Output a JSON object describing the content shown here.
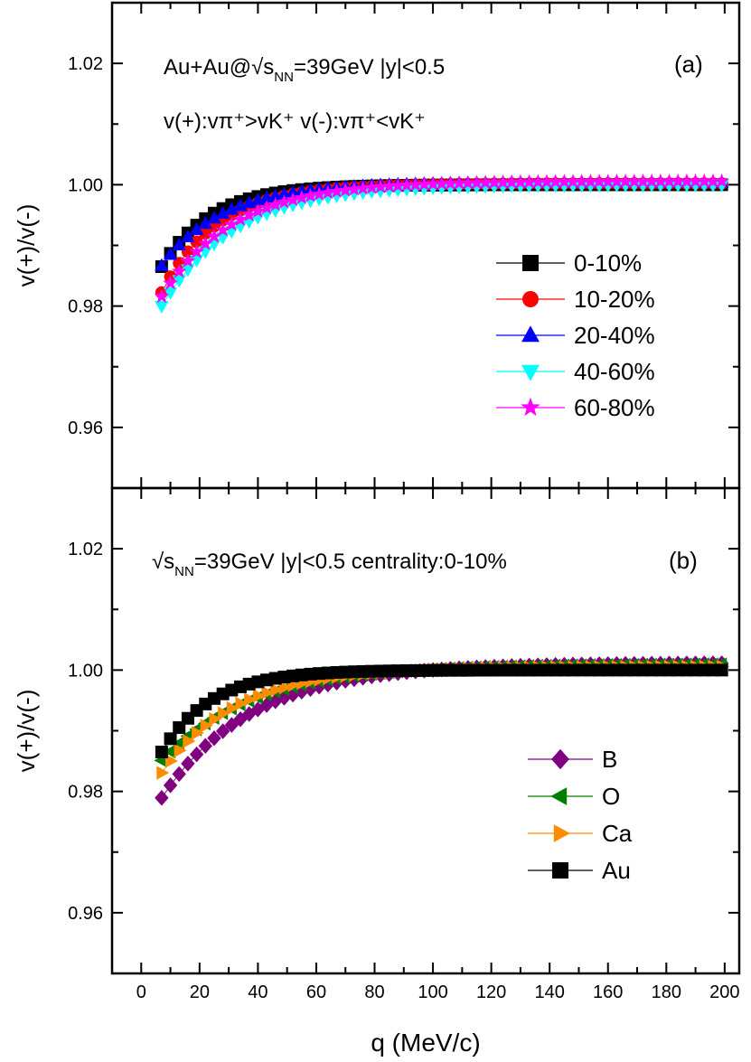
{
  "chart_data": [
    {
      "panel": "a",
      "type": "line",
      "tag": "(a)",
      "xlabel": "q (MeV/c)",
      "ylabel": "v(+)/v(-)",
      "xlim": [
        -10,
        205
      ],
      "ylim": [
        0.95,
        1.03
      ],
      "xticks": [
        0,
        20,
        40,
        60,
        80,
        100,
        120,
        140,
        160,
        180,
        200
      ],
      "yticks": [
        0.96,
        0.98,
        1.0,
        1.02
      ],
      "yticklabels": [
        "0.96",
        "0.98",
        "1.00",
        "1.02"
      ],
      "annotations": [
        {
          "prefix": "Au+Au@√s",
          "sub": "NN",
          "suffix": "=39GeV |y|<0.5"
        },
        {
          "text": "v(+):vπ⁺>vK⁺ v(-):vπ⁺<vK⁺"
        }
      ],
      "legend_position": "right",
      "series": [
        {
          "name": "0-10%",
          "color": "#000000",
          "marker": "square",
          "decay": 17,
          "s0": 0.0135,
          "tail": 0.0
        },
        {
          "name": "10-20%",
          "color": "#ff0000",
          "marker": "circle",
          "decay": 19,
          "s0": 0.0178,
          "tail": 0.0002
        },
        {
          "name": "20-40%",
          "color": "#0000ff",
          "marker": "triangle-up",
          "decay": 21,
          "s0": 0.0134,
          "tail": 0.0004
        },
        {
          "name": "40-60%",
          "color": "#00ffff",
          "marker": "triangle-down",
          "decay": 25,
          "s0": 0.02,
          "tail": 0.0
        },
        {
          "name": "60-80%",
          "color": "#ff00ff",
          "marker": "star",
          "decay": 24,
          "s0": 0.0185,
          "tail": 0.0006
        }
      ]
    },
    {
      "panel": "b",
      "type": "line",
      "tag": "(b)",
      "xlabel": "q (MeV/c)",
      "ylabel": "v(+)/v(-)",
      "xlim": [
        -10,
        205
      ],
      "ylim": [
        0.95,
        1.03
      ],
      "xticks": [
        0,
        20,
        40,
        60,
        80,
        100,
        120,
        140,
        160,
        180,
        200
      ],
      "yticks": [
        0.96,
        0.98,
        1.0,
        1.02
      ],
      "yticklabels": [
        "0.96",
        "0.98",
        "1.00",
        "1.02"
      ],
      "annotations": [
        {
          "prefix": "√s",
          "sub": "NN",
          "suffix": "=39GeV |y|<0.5 centrality:0-10%"
        }
      ],
      "legend_position": "right",
      "series": [
        {
          "name": "B",
          "color": "#800080",
          "marker": "diamond",
          "decay": 30,
          "s0": 0.0212,
          "tail": 0.0012
        },
        {
          "name": "O",
          "color": "#008000",
          "marker": "triangle-left",
          "decay": 30,
          "s0": 0.015,
          "tail": 0.001
        },
        {
          "name": "Ca",
          "color": "#ff8c00",
          "marker": "triangle-right",
          "decay": 25,
          "s0": 0.017,
          "tail": 0.0006
        },
        {
          "name": "Au",
          "color": "#000000",
          "marker": "square",
          "decay": 17,
          "s0": 0.0135,
          "tail": 0.0
        }
      ]
    }
  ]
}
